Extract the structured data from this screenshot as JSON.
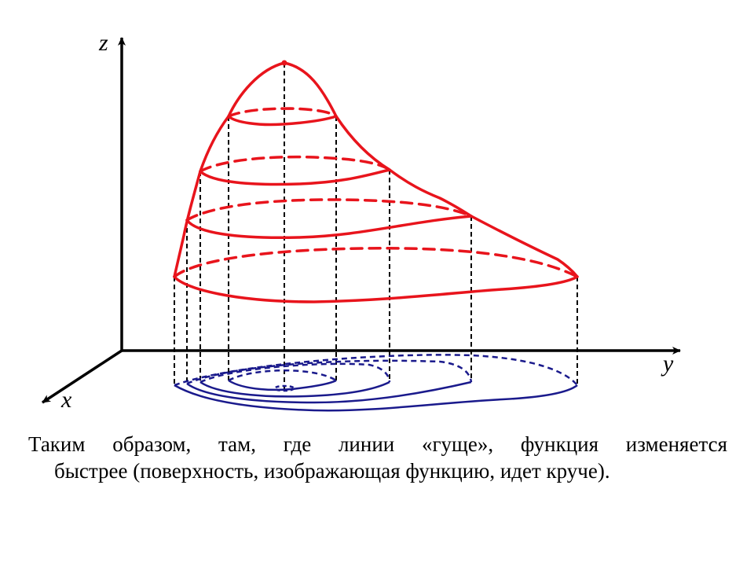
{
  "axes": {
    "z_label": "z",
    "y_label": "y",
    "x_label": "x"
  },
  "colors": {
    "surface": "#e8141c",
    "contours": "#1a1a8c",
    "axes": "#000000",
    "projection_lines": "#000000"
  },
  "caption": {
    "line1": "Таким образом, там, где линии «гуще», функция изменяется",
    "line2": "быстрее (поверхность, изображающая функцию, идет круче)."
  }
}
